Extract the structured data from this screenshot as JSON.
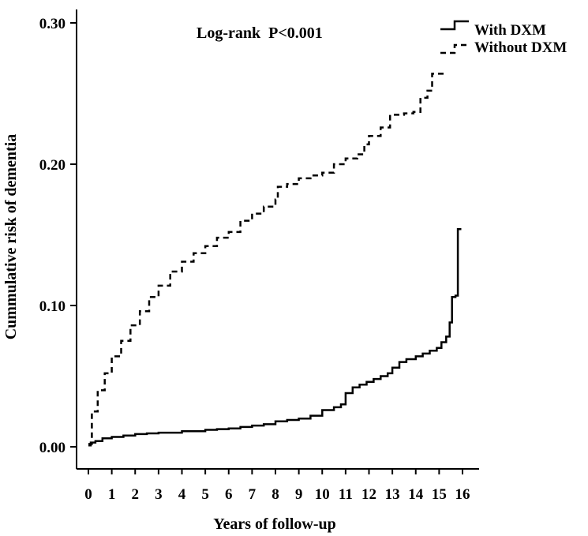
{
  "chart_data": {
    "type": "line",
    "subtype": "step",
    "xlabel": "Years of follow-up",
    "ylabel": "Cummulative risk of dementia",
    "annotation": "Log-rank  P<0.001",
    "xlim": [
      0,
      16
    ],
    "ylim": [
      0,
      0.3
    ],
    "x_ticks": [
      0,
      1,
      2,
      3,
      4,
      5,
      6,
      7,
      8,
      9,
      10,
      11,
      12,
      13,
      14,
      15,
      16
    ],
    "y_ticks": [
      0.0,
      0.1,
      0.2,
      0.3
    ],
    "y_tick_labels": [
      "0.00",
      "0.10",
      "0.20",
      "0.30"
    ],
    "grid": false,
    "legend_position": "top-right",
    "series": [
      {
        "name": "With DXM",
        "style": "solid",
        "color": "#000000",
        "x": [
          0,
          0.1,
          0.3,
          0.6,
          1.0,
          1.5,
          2.0,
          2.5,
          3.0,
          4.0,
          5.0,
          5.5,
          6.0,
          6.5,
          7.0,
          7.5,
          8.0,
          8.5,
          9.0,
          9.5,
          10.0,
          10.5,
          10.8,
          11.0,
          11.3,
          11.6,
          11.9,
          12.2,
          12.5,
          12.8,
          13.0,
          13.3,
          13.6,
          14.0,
          14.3,
          14.6,
          14.9,
          15.1,
          15.3,
          15.45,
          15.55,
          15.7,
          15.8,
          15.95
        ],
        "values": [
          0.001,
          0.003,
          0.004,
          0.006,
          0.007,
          0.008,
          0.009,
          0.0095,
          0.01,
          0.011,
          0.012,
          0.0125,
          0.013,
          0.014,
          0.015,
          0.016,
          0.018,
          0.019,
          0.02,
          0.022,
          0.026,
          0.028,
          0.03,
          0.038,
          0.042,
          0.044,
          0.046,
          0.048,
          0.05,
          0.052,
          0.056,
          0.06,
          0.062,
          0.064,
          0.066,
          0.068,
          0.07,
          0.074,
          0.078,
          0.088,
          0.106,
          0.107,
          0.154,
          0.154
        ]
      },
      {
        "name": "Without DXM",
        "style": "dashed",
        "color": "#000000",
        "x": [
          0,
          0.15,
          0.4,
          0.7,
          1.0,
          1.4,
          1.8,
          2.2,
          2.6,
          3.0,
          3.5,
          4.0,
          4.5,
          5.0,
          5.5,
          6.0,
          6.5,
          7.0,
          7.5,
          8.0,
          8.1,
          8.5,
          9.0,
          9.5,
          10.0,
          10.5,
          11.0,
          11.5,
          11.8,
          12.0,
          12.5,
          12.9,
          13.5,
          13.9,
          14.2,
          14.5,
          14.7,
          15.0,
          15.3
        ],
        "values": [
          0.002,
          0.025,
          0.04,
          0.052,
          0.064,
          0.075,
          0.086,
          0.096,
          0.106,
          0.114,
          0.124,
          0.131,
          0.137,
          0.142,
          0.148,
          0.152,
          0.16,
          0.165,
          0.17,
          0.175,
          0.184,
          0.186,
          0.19,
          0.192,
          0.194,
          0.2,
          0.204,
          0.207,
          0.214,
          0.22,
          0.226,
          0.235,
          0.236,
          0.237,
          0.247,
          0.252,
          0.264,
          0.264,
          0.264
        ]
      }
    ]
  }
}
